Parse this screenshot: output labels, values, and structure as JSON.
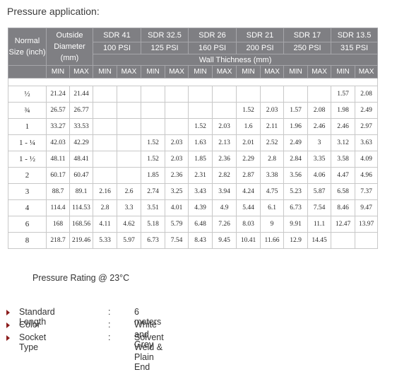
{
  "title": "Pressure application:",
  "table": {
    "size_header": "Normal Size (inch)",
    "od_header": "Outside Diameter (mm)",
    "wall_header": "Wall Thichness (mm)",
    "min_label": "MIN",
    "max_label": "MAX",
    "sdr": [
      {
        "name": "SDR 41",
        "psi": "100 PSI"
      },
      {
        "name": "SDR 32.5",
        "psi": "125 PSI"
      },
      {
        "name": "SDR 26",
        "psi": "160 PSI"
      },
      {
        "name": "SDR 21",
        "psi": "200 PSI"
      },
      {
        "name": "SDR 17",
        "psi": "250 PSI"
      },
      {
        "name": "SDR 13.5",
        "psi": "315 PSI"
      }
    ],
    "rows": [
      {
        "size": "½",
        "od": [
          "21.24",
          "21.44"
        ],
        "wall": [
          "",
          "",
          "",
          "",
          "",
          "",
          "",
          "",
          "",
          "",
          "1.57",
          "2.08"
        ]
      },
      {
        "size": "¾",
        "od": [
          "26.57",
          "26.77"
        ],
        "wall": [
          "",
          "",
          "",
          "",
          "",
          "",
          "1.52",
          "2.03",
          "1.57",
          "2.08",
          "1.98",
          "2.49"
        ]
      },
      {
        "size": "1",
        "od": [
          "33.27",
          "33.53"
        ],
        "wall": [
          "",
          "",
          "",
          "",
          "1.52",
          "2.03",
          "1.6",
          "2.11",
          "1.96",
          "2.46",
          "2.46",
          "2.97"
        ]
      },
      {
        "size": "1 - ¼",
        "od": [
          "42.03",
          "42.29"
        ],
        "wall": [
          "",
          "",
          "1.52",
          "2.03",
          "1.63",
          "2.13",
          "2.01",
          "2.52",
          "2.49",
          "3",
          "3.12",
          "3.63"
        ]
      },
      {
        "size": "1 - ½",
        "od": [
          "48.11",
          "48.41"
        ],
        "wall": [
          "",
          "",
          "1.52",
          "2.03",
          "1.85",
          "2.36",
          "2.29",
          "2.8",
          "2.84",
          "3.35",
          "3.58",
          "4.09"
        ]
      },
      {
        "size": "2",
        "od": [
          "60.17",
          "60.47"
        ],
        "wall": [
          "",
          "",
          "1.85",
          "2.36",
          "2.31",
          "2.82",
          "2.87",
          "3.38",
          "3.56",
          "4.06",
          "4.47",
          "4.96"
        ]
      },
      {
        "size": "3",
        "od": [
          "88.7",
          "89.1"
        ],
        "wall": [
          "2.16",
          "2.6",
          "2.74",
          "3.25",
          "3.43",
          "3.94",
          "4.24",
          "4.75",
          "5.23",
          "5.87",
          "6.58",
          "7.37"
        ]
      },
      {
        "size": "4",
        "od": [
          "114.4",
          "114.53"
        ],
        "wall": [
          "2.8",
          "3.3",
          "3.51",
          "4.01",
          "4.39",
          "4.9",
          "5.44",
          "6.1",
          "6.73",
          "7.54",
          "8.46",
          "9.47"
        ]
      },
      {
        "size": "6",
        "od": [
          "168",
          "168.56"
        ],
        "wall": [
          "4.11",
          "4.62",
          "5.18",
          "5.79",
          "6.48",
          "7.26",
          "8.03",
          "9",
          "9.91",
          "11.1",
          "12.47",
          "13.97"
        ]
      },
      {
        "size": "8",
        "od": [
          "218.7",
          "219.46"
        ],
        "wall": [
          "5.33",
          "5.97",
          "6.73",
          "7.54",
          "8.43",
          "9.45",
          "10.41",
          "11.66",
          "12.9",
          "14.45",
          "",
          ""
        ]
      }
    ]
  },
  "pressure_rating": "Pressure Rating @ 23°C",
  "specs": [
    {
      "label": "Standard Length",
      "colon": ":",
      "value": "6 meters"
    },
    {
      "label": "Color",
      "colon": ":",
      "value": "White  and Grey"
    },
    {
      "label": "Socket Type",
      "colon": ":",
      "value": "Solvent Weld & Plain End"
    }
  ],
  "colors": {
    "header_bg": "#7f7f83",
    "bullet": "#8b1c1c",
    "grid": "#c8c8c8"
  }
}
